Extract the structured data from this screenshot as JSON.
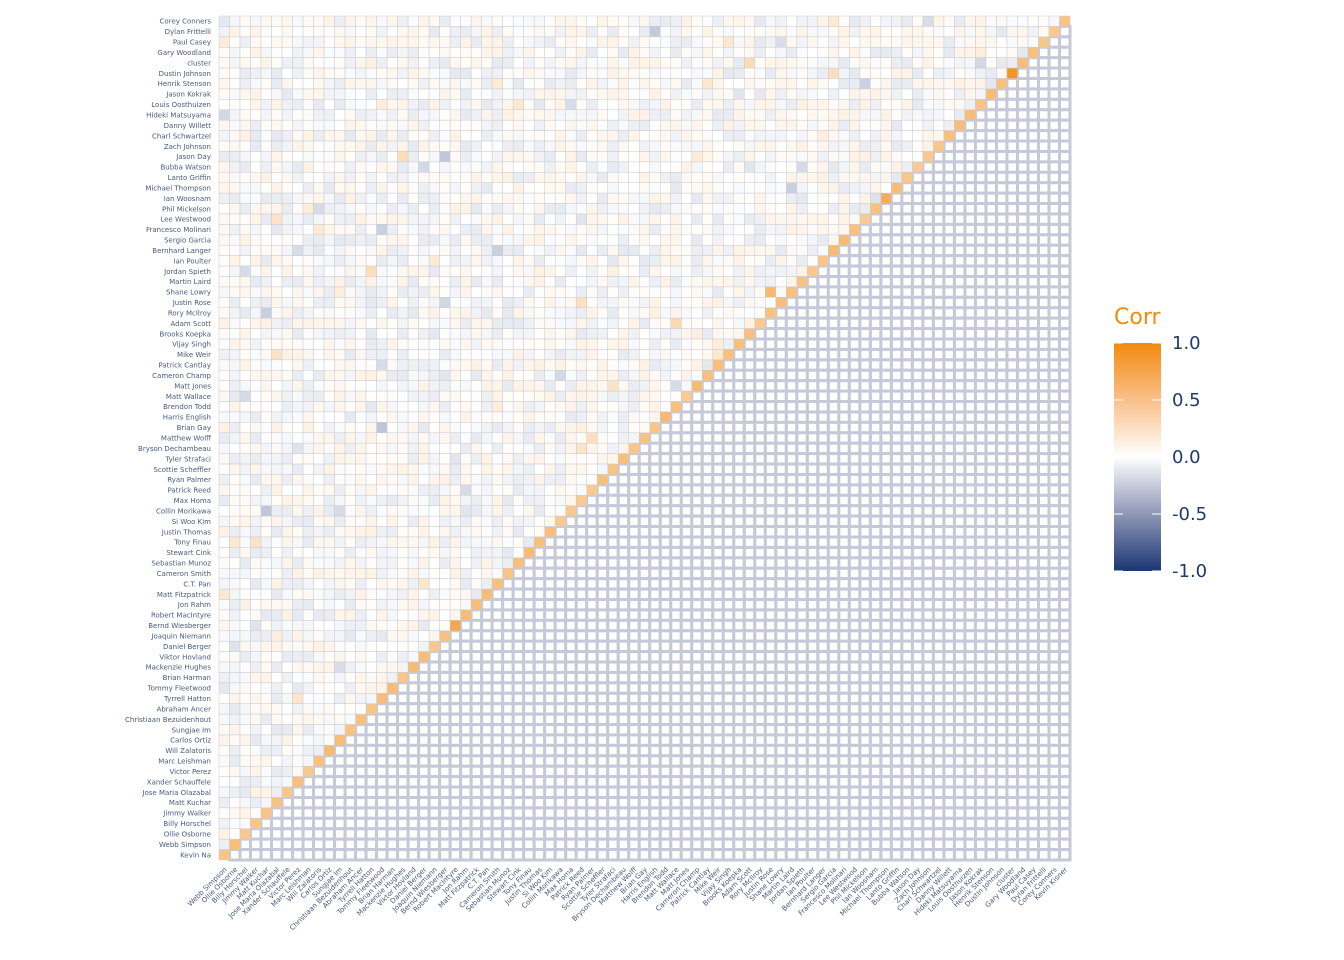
{
  "chart_data": {
    "type": "heatmap",
    "subtype": "correlation-lower-triangle",
    "title": "",
    "xlabel": "",
    "ylabel": "",
    "legend": {
      "title": "Corr",
      "ticks": [
        "1.0",
        "0.5",
        "0.0",
        "-0.5",
        "-1.0"
      ],
      "tick_values": [
        1.0,
        0.5,
        0.0,
        -0.5,
        -1.0
      ],
      "colors": {
        "high": "#f28a0f",
        "mid": "#ffffff",
        "low": "#1c3773"
      },
      "placement": "right"
    },
    "x_labels": [
      "Webb Simpson",
      "Ollie Osborne",
      "Billy Horschel",
      "Jimmy Walker",
      "Matt Kuchar",
      "Jose Maria Olazabal",
      "Xander Schauffele",
      "Victor Perez",
      "Marc Leishman",
      "Will Zalatoris",
      "Carlos Ortiz",
      "Sungjae Im",
      "Christiaan Bezuidenhout",
      "Abraham Ancer",
      "Tyrrell Hatton",
      "Tommy Fleetwood",
      "Brian Harman",
      "Mackenzie Hughes",
      "Viktor Hovland",
      "Daniel Berger",
      "Joaquin Niemann",
      "Bernd Wiesberger",
      "Robert MacIntyre",
      "Jon Rahm",
      "Matt Fitzpatrick",
      "C.T. Pan",
      "Cameron Smith",
      "Sebastian Munoz",
      "Stewart Cink",
      "Tony Finau",
      "Justin Thomas",
      "Si Woo Kim",
      "Collin Morikawa",
      "Max Homa",
      "Patrick Reed",
      "Ryan Palmer",
      "Scottie Scheffler",
      "Tyler Strafaci",
      "Bryson Dechambeau",
      "Matthew Wolff",
      "Brian Gay",
      "Harris English",
      "Brendon Todd",
      "Matt Wallace",
      "Matt Jones",
      "Cameron Champ",
      "Patrick Cantlay",
      "Mike Weir",
      "Vijay Singh",
      "Brooks Koepka",
      "Adam Scott",
      "Rory McIlroy",
      "Justin Rose",
      "Shane Lowry",
      "Martin Laird",
      "Jordan Spieth",
      "Ian Poulter",
      "Bernhard Langer",
      "Sergio Garcia",
      "Francesco Molinari",
      "Lee Westwood",
      "Phil Mickelson",
      "Ian Woosnam",
      "Michael Thompson",
      "Lanto Griffin",
      "Bubba Watson",
      "Jason Day",
      "Zach Johnson",
      "Charl Schwartzel",
      "Danny Willett",
      "Hideki Matsuyama",
      "Louis Oosthuizen",
      "Jason Kokrak",
      "Henrik Stenson",
      "Dustin Johnson",
      "cluster",
      "Gary Woodland",
      "Paul Casey",
      "Dylan Frittelli",
      "Corey Conners",
      "Kevin Kisner"
    ],
    "y_labels_top_to_bottom": [
      "Corey Conners",
      "Dylan Frittelli",
      "Paul Casey",
      "Gary Woodland",
      "cluster",
      "Dustin Johnson",
      "Henrik Stenson",
      "Jason Kokrak",
      "Louis Oosthuizen",
      "Hideki Matsuyama",
      "Danny Willett",
      "Charl Schwartzel",
      "Zach Johnson",
      "Jason Day",
      "Bubba Watson",
      "Lanto Griffin",
      "Michael Thompson",
      "Ian Woosnam",
      "Phil Mickelson",
      "Lee Westwood",
      "Francesco Molinari",
      "Sergio Garcia",
      "Bernhard Langer",
      "Ian Poulter",
      "Jordan Spieth",
      "Martin Laird",
      "Shane Lowry",
      "Justin Rose",
      "Rory McIlroy",
      "Adam Scott",
      "Brooks Koepka",
      "Vijay Singh",
      "Mike Weir",
      "Patrick Cantlay",
      "Cameron Champ",
      "Matt Jones",
      "Matt Wallace",
      "Brendon Todd",
      "Harris English",
      "Brian Gay",
      "Matthew Wolff",
      "Bryson Dechambeau",
      "Tyler Strafaci",
      "Scottie Scheffler",
      "Ryan Palmer",
      "Patrick Reed",
      "Max Homa",
      "Collin Morikawa",
      "Si Woo Kim",
      "Justin Thomas",
      "Tony Finau",
      "Stewart Cink",
      "Sebastian Munoz",
      "Cameron Smith",
      "C.T. Pan",
      "Matt Fitzpatrick",
      "Jon Rahm",
      "Robert MacIntyre",
      "Bernd Wiesberger",
      "Joaquin Niemann",
      "Daniel Berger",
      "Viktor Hovland",
      "Mackenzie Hughes",
      "Brian Harman",
      "Tommy Fleetwood",
      "Tyrrell Hatton",
      "Abraham Ancer",
      "Christiaan Bezuidenhout",
      "Sungjae Im",
      "Carlos Ortiz",
      "Will Zalatoris",
      "Marc Leishman",
      "Victor Perez",
      "Xander Schauffele",
      "Jose Maria Olazabal",
      "Matt Kuchar",
      "Jimmy Walker",
      "Billy Horschel",
      "Ollie Osborne",
      "Webb Simpson",
      "Kevin Na"
    ],
    "value_range": [
      -1,
      1
    ],
    "grid": true,
    "seed": 7,
    "strong_cells": [
      {
        "row": "Dustin Johnson",
        "col": "cluster",
        "value": 0.9
      },
      {
        "row": "Ian Woosnam",
        "col": "Michael Thompson",
        "value": 0.7
      },
      {
        "row": "Shane Lowry",
        "col": "Justin Rose",
        "value": 0.6
      },
      {
        "row": "Harris English",
        "col": "Brendon Todd",
        "value": 0.6
      },
      {
        "row": "Bernd Wiesberger",
        "col": "Robert MacIntyre",
        "value": 0.75
      },
      {
        "row": "Joaquin Niemann",
        "col": "Robert MacIntyre",
        "value": 0.45
      }
    ]
  }
}
